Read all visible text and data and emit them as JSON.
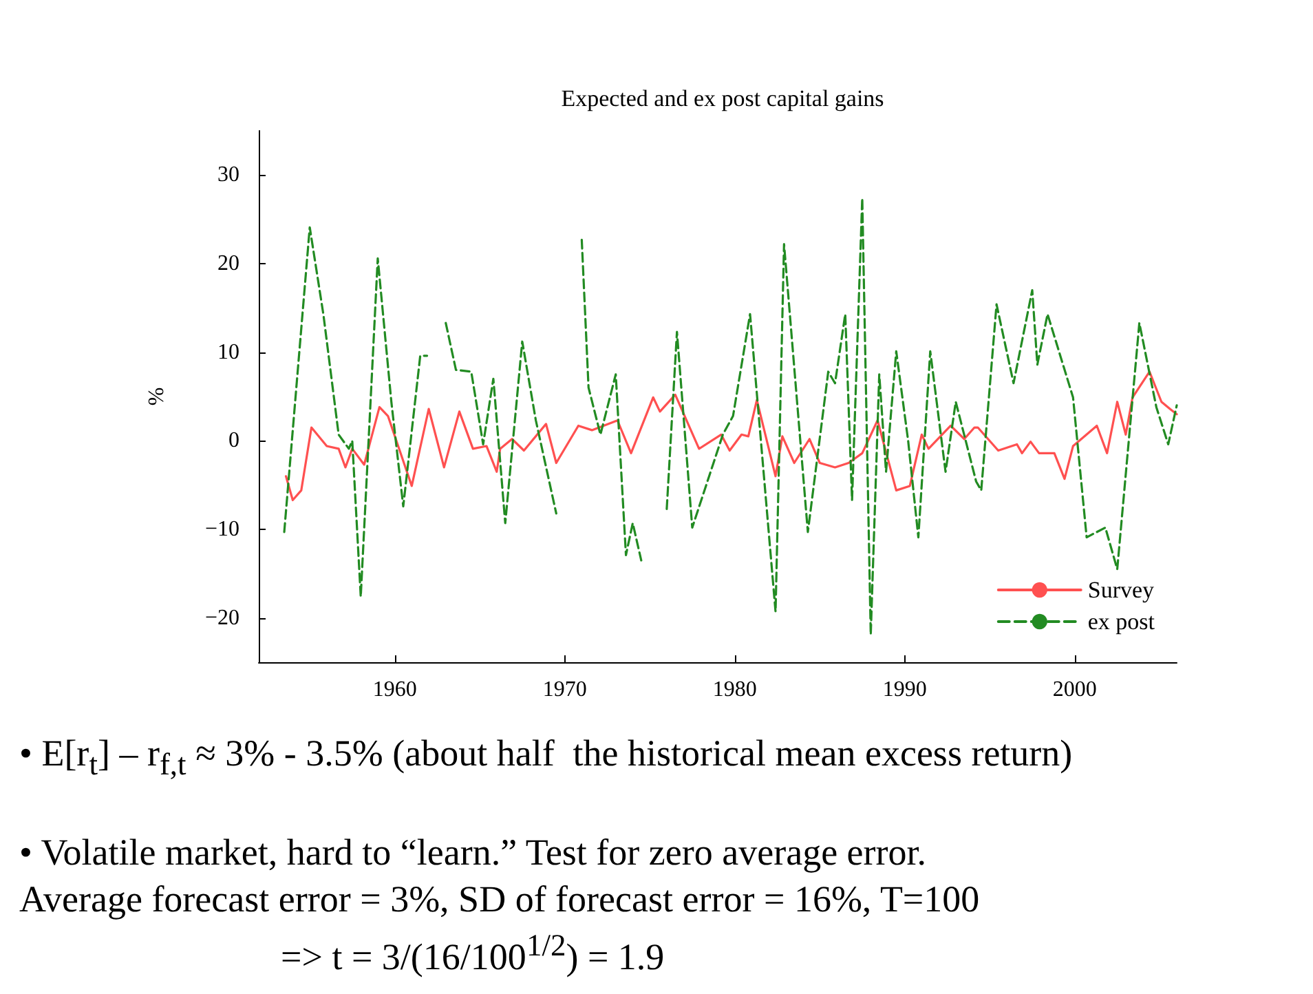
{
  "chart_data": {
    "type": "line",
    "title": "Expected and ex post capital gains",
    "ylabel": "%",
    "xlim": [
      1952,
      2006
    ],
    "xticks": [
      1960,
      1970,
      1980,
      1990,
      2000
    ],
    "ylim": [
      -25,
      35
    ],
    "yticks": [
      -20,
      -10,
      0,
      10,
      20,
      30
    ],
    "grid": false,
    "legend": "bottom right",
    "marker": "none",
    "series": [
      {
        "name": "Survey",
        "color": "#ff5050",
        "line_style": "solid",
        "x": [
          1953.6,
          1954.0,
          1954.5,
          1955.1,
          1956.0,
          1956.7,
          1957.1,
          1957.5,
          1958.2,
          1959.1,
          1959.6,
          1961.0,
          1962.0,
          1962.9,
          1963.8,
          1964.6,
          1965.4,
          1966.0,
          1966.2,
          1966.9,
          1967.6,
          1968.9,
          1969.5,
          1970.8,
          1971.6,
          1973.1,
          1973.9,
          1975.2,
          1975.6,
          1976.5,
          1977.9,
          1979.2,
          1979.7,
          1980.4,
          1980.8,
          1981.3,
          1982.4,
          1982.8,
          1983.5,
          1984.4,
          1985.0,
          1985.9,
          1986.7,
          1987.5,
          1988.4,
          1989.5,
          1990.3,
          1991.0,
          1991.4,
          1992.7,
          1993.5,
          1994.1,
          1994.3,
          1995.5,
          1996.6,
          1996.9,
          1997.4,
          1997.9,
          1998.8,
          1999.4,
          1999.9,
          2001.3,
          2001.9,
          2002.5,
          2003.0,
          2003.4,
          2004.4,
          2005.1,
          2005.6,
          2006.0
        ],
        "values": [
          -4.0,
          -6.7,
          -5.6,
          1.5,
          -0.6,
          -0.9,
          -3.0,
          -0.9,
          -2.7,
          3.8,
          2.8,
          -5.1,
          3.6,
          -3.0,
          3.3,
          -0.9,
          -0.6,
          -3.5,
          -0.9,
          0.2,
          -1.1,
          1.9,
          -2.5,
          1.7,
          1.2,
          2.3,
          -1.4,
          4.9,
          3.3,
          5.2,
          -0.9,
          0.7,
          -1.1,
          0.7,
          0.5,
          4.6,
          -4.0,
          0.5,
          -2.5,
          0.2,
          -2.5,
          -3.0,
          -2.5,
          -1.4,
          2.3,
          -5.6,
          -5.1,
          0.7,
          -0.9,
          1.7,
          0.2,
          1.5,
          1.5,
          -1.1,
          -0.4,
          -1.4,
          -0.1,
          -1.4,
          -1.4,
          -4.3,
          -0.6,
          1.7,
          -1.4,
          4.4,
          0.7,
          4.9,
          7.8,
          4.4,
          3.6,
          3.0
        ]
      },
      {
        "name": "ex post",
        "color": "#228b22",
        "line_style": "dashed",
        "x": [
          1953.5,
          1955.0,
          1955.8,
          1956.7,
          1957.3,
          1957.5,
          1958.0,
          1959.0,
          1959.8,
          1960.5,
          1961.5,
          1961.9,
          1962.5,
          1963.0,
          1963.6,
          1964.5,
          1965.2,
          1965.8,
          1966.5,
          1967.5,
          1968.3,
          1969.5,
          1970.4,
          1971.0,
          1971.4,
          1972.1,
          1973.0,
          1973.6,
          1974.0,
          1974.5,
          1975.0,
          1975.5,
          1976.0,
          1976.6,
          1977.5,
          1979.3,
          1979.9,
          1980.9,
          1982.4,
          1982.9,
          1984.3,
          1985.5,
          1985.9,
          1986.5,
          1986.9,
          1987.5,
          1988.0,
          1988.5,
          1988.9,
          1989.5,
          1990.2,
          1990.8,
          1991.5,
          1992.4,
          1993.0,
          1994.2,
          1994.5,
          1995.4,
          1996.4,
          1997.5,
          1997.8,
          1998.4,
          1999.9,
          2000.7,
          2001.8,
          2002.5,
          2003.8,
          2004.8,
          2005.5,
          2006.0
        ],
        "values": [
          -10.3,
          24.1,
          14.3,
          0.7,
          -0.9,
          0.0,
          -17.6,
          20.6,
          4.4,
          -7.4,
          9.6,
          9.6,
          null,
          13.3,
          8.0,
          7.8,
          -0.4,
          7.0,
          -9.3,
          11.2,
          2.3,
          -8.2,
          null,
          22.7,
          6.0,
          0.7,
          7.5,
          -12.9,
          -9.3,
          -13.5,
          null,
          null,
          -7.7,
          12.3,
          -9.8,
          0.7,
          2.8,
          14.3,
          -19.3,
          22.2,
          -10.3,
          7.8,
          6.5,
          14.3,
          -6.7,
          27.4,
          -21.9,
          7.5,
          -3.5,
          10.1,
          0.0,
          -10.9,
          10.1,
          -3.5,
          4.4,
          -4.6,
          -5.6,
          15.4,
          6.5,
          17.0,
          8.6,
          14.3,
          4.9,
          -10.9,
          -9.8,
          -14.5,
          13.3,
          3.8,
          -0.4,
          4.0
        ]
      }
    ],
    "annotations": [
      "• E[r$_{t}$] – r$_{f,t}$ ≈ 3% - 3.5% (about half  the historical mean excess return)",
      "• Volatile market, hard to “learn.” Test for zero average error.",
      "Average forecast error = 3%, SD of forecast error = 16%, T=100",
      "=> t = 3/(16/100$^{1/2}$) = 1.9"
    ]
  }
}
